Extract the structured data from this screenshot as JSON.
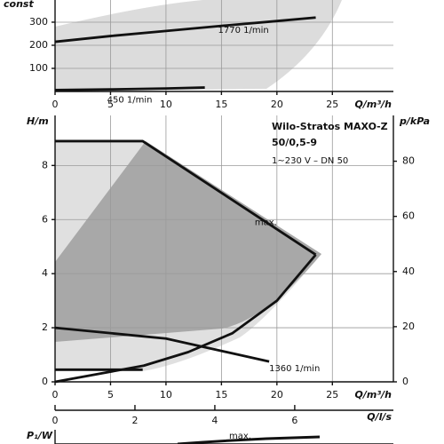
{
  "chart_data": [
    {
      "type": "line",
      "y_label": "const",
      "x_label": "Q/m³/h",
      "xlim": [
        0,
        30.5
      ],
      "xticks": [
        0,
        5,
        10,
        15,
        20,
        25
      ],
      "ylim": [
        0,
        396
      ],
      "yticks": [
        100,
        200,
        300
      ],
      "grid": true,
      "series": [
        {
          "name": "1770 1/min",
          "color": "#111111",
          "x": [
            0,
            5,
            10,
            15,
            20,
            23.5
          ],
          "values": [
            215,
            240,
            262,
            284,
            305,
            320
          ]
        },
        {
          "name": "450 1/min",
          "color": "#111111",
          "x": [
            0,
            5,
            10,
            13.5
          ],
          "values": [
            6,
            9,
            13,
            17
          ]
        }
      ]
    },
    {
      "type": "line",
      "y_label": "H/m",
      "y2_label": "p/kPa",
      "x_label": "Q/m³/h",
      "x2_label": "Q/l/s",
      "title": "Wilo-Stratos MAXO-Z",
      "subtitle": "50/0,5-9",
      "note": "1~230 V – DN 50",
      "xlim": [
        0,
        30.5
      ],
      "xticks": [
        0,
        5,
        10,
        15,
        20,
        25
      ],
      "x2lim": [
        0,
        8.47
      ],
      "x2ticks": [
        0,
        2,
        4,
        6
      ],
      "ylim": [
        0,
        9.85
      ],
      "yticks": [
        0,
        2,
        4,
        6,
        8
      ],
      "y2lim": [
        0,
        96.6
      ],
      "y2ticks": [
        0,
        20,
        40,
        60,
        80
      ],
      "grid": true,
      "series": [
        {
          "name": "max.",
          "color": "#111111",
          "x": [
            0,
            7.9,
            23.5
          ],
          "values": [
            8.9,
            8.9,
            4.7
          ]
        },
        {
          "color": "#111111",
          "x": [
            23.5,
            20,
            16,
            12,
            8,
            4,
            0
          ],
          "values": [
            4.7,
            3.0,
            1.8,
            1.1,
            0.6,
            0.3,
            0
          ]
        },
        {
          "name": "1360 1/min",
          "color": "#111111",
          "x": [
            0,
            10,
            19.3
          ],
          "values": [
            2.0,
            1.6,
            0.75
          ]
        },
        {
          "color": "#111111",
          "x": [
            0,
            7.9
          ],
          "values": [
            0.45,
            0.45
          ]
        }
      ]
    },
    {
      "type": "line",
      "y_label": "P₁/W",
      "annotation": "max."
    }
  ]
}
